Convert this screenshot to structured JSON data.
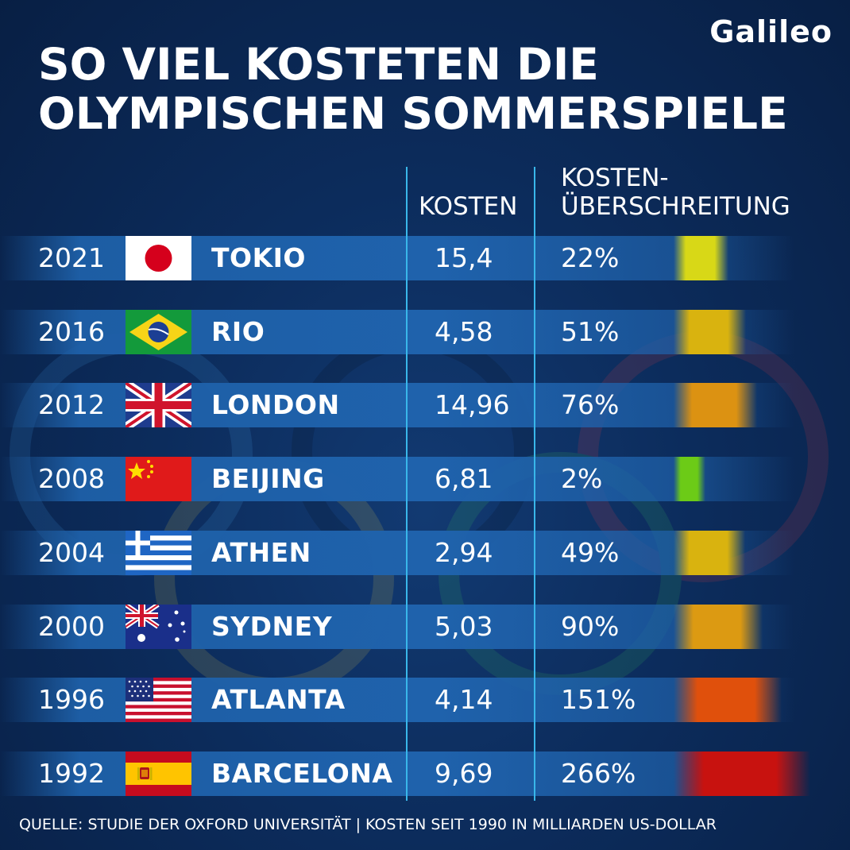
{
  "brand": "Galileo",
  "title_line1": "SO VIEL KOSTETEN DIE",
  "title_line2": "OLYMPISCHEN SOMMERSPIELE",
  "columns": {
    "kosten": "KOSTEN",
    "ueberschreitung_line1": "KOSTEN-",
    "ueberschreitung_line2": "ÜBERSCHREITUNG"
  },
  "footer": "QUELLE:  STUDIE DER OXFORD UNIVERSITÄT  |   KOSTEN SEIT 1990 IN MILLIARDEN US-DOLLAR",
  "colors": {
    "background": "#0c2c5c",
    "row_band": "#1f62ac",
    "divider": "#39b7ea"
  },
  "chart_data": {
    "type": "table",
    "title": "SO VIEL KOSTETEN DIE OLYMPISCHEN SOMMERSPIELE",
    "rows": [
      {
        "year": "2021",
        "city": "TOKIO",
        "flag": "japan-flag",
        "cost": "15,4",
        "overrun": "22%",
        "overrun_value": 22,
        "bar_color": "#d8d817"
      },
      {
        "year": "2016",
        "city": "RIO",
        "flag": "brazil-flag",
        "cost": "4,58",
        "overrun": "51%",
        "overrun_value": 51,
        "bar_color": "#d9b30f"
      },
      {
        "year": "2012",
        "city": "LONDON",
        "flag": "uk-flag",
        "cost": "14,96",
        "overrun": "76%",
        "overrun_value": 76,
        "bar_color": "#dc9212"
      },
      {
        "year": "2008",
        "city": "BEIJING",
        "flag": "china-flag",
        "cost": "6,81",
        "overrun": "2%",
        "overrun_value": 2,
        "bar_color": "#6ccb17"
      },
      {
        "year": "2004",
        "city": "ATHEN",
        "flag": "greece-flag",
        "cost": "2,94",
        "overrun": "49%",
        "overrun_value": 49,
        "bar_color": "#d9b30f"
      },
      {
        "year": "2000",
        "city": "SYDNEY",
        "flag": "australia-flag",
        "cost": "5,03",
        "overrun": "90%",
        "overrun_value": 90,
        "bar_color": "#dc9a12"
      },
      {
        "year": "1996",
        "city": "ATLANTA",
        "flag": "usa-flag",
        "cost": "4,14",
        "overrun": "151%",
        "overrun_value": 151,
        "bar_color": "#e0500c"
      },
      {
        "year": "1992",
        "city": "BARCELONA",
        "flag": "spain-flag",
        "cost": "9,69",
        "overrun": "266%",
        "overrun_value": 266,
        "bar_color": "#c8120f"
      }
    ]
  }
}
